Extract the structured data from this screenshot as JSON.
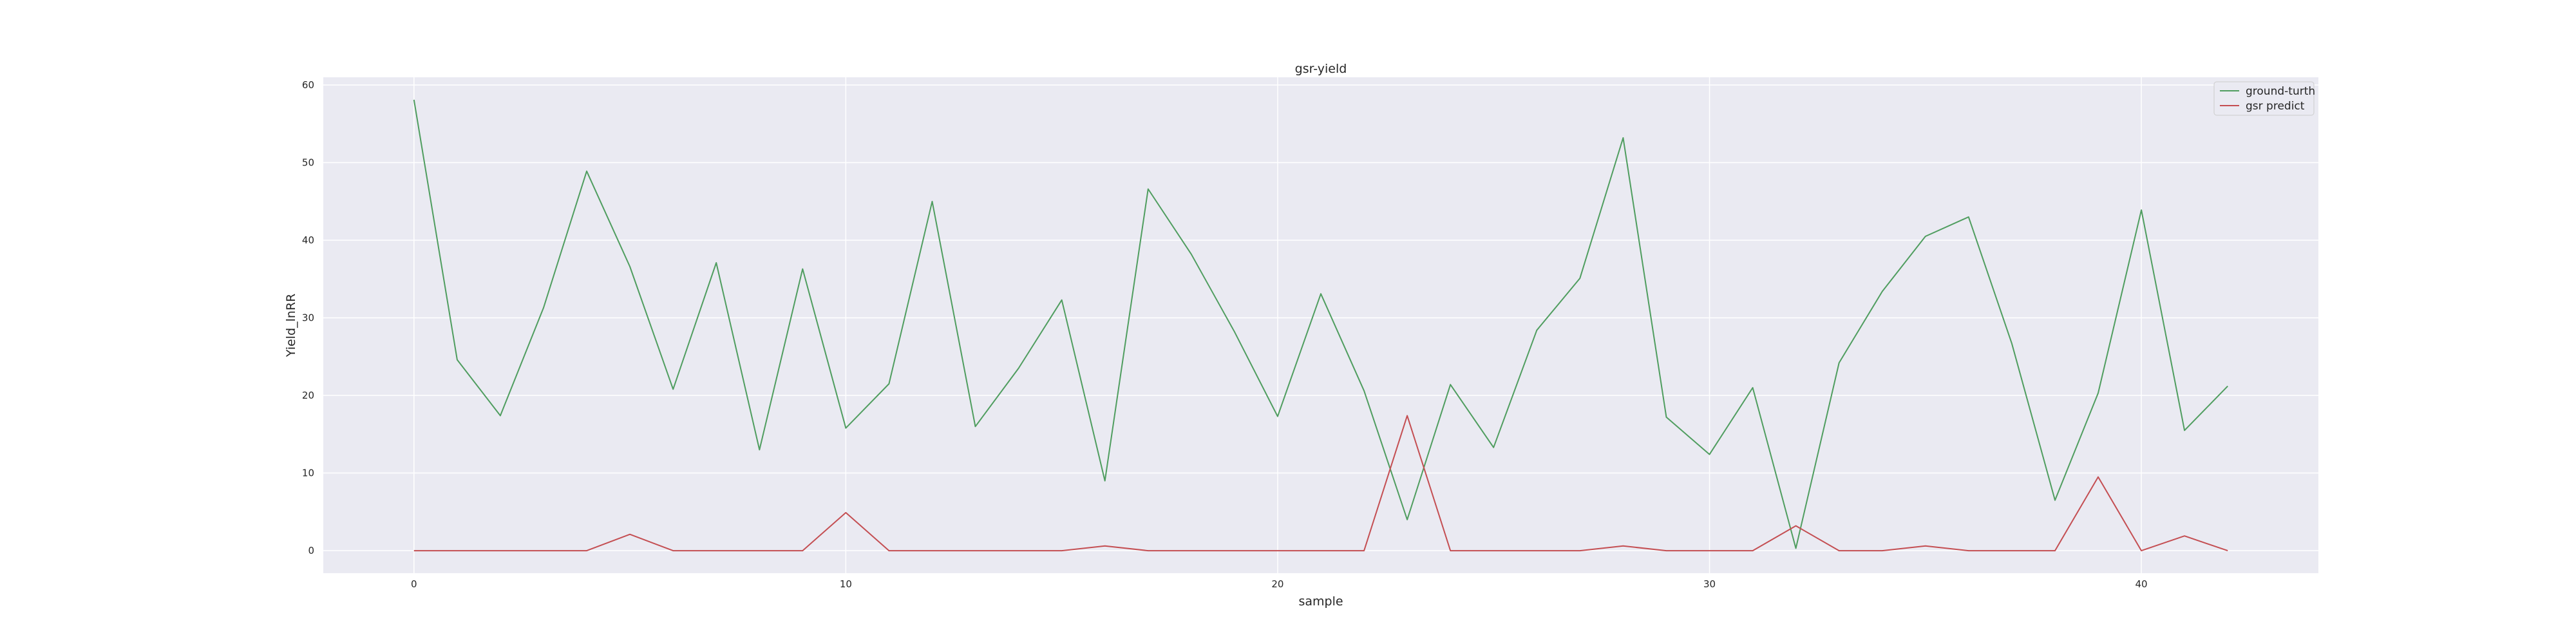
{
  "chart_data": {
    "type": "line",
    "title": "gsr-yield",
    "xlabel": "sample",
    "ylabel": "Yield_lnRR",
    "x": [
      0,
      1,
      2,
      3,
      4,
      5,
      6,
      7,
      8,
      9,
      10,
      11,
      12,
      13,
      14,
      15,
      16,
      17,
      18,
      19,
      20,
      21,
      22,
      23,
      24,
      25,
      26,
      27,
      28,
      29,
      30,
      31,
      32,
      33,
      34,
      35,
      36,
      37,
      38,
      39,
      40,
      41,
      42
    ],
    "xlim": [
      -2.1,
      44.1
    ],
    "ylim": [
      -2.9,
      61.0
    ],
    "xticks": [
      0,
      10,
      20,
      30,
      40
    ],
    "yticks": [
      0,
      10,
      20,
      30,
      40,
      50,
      60
    ],
    "grid": true,
    "legend_position": "top-right",
    "series": [
      {
        "name": "ground-turth",
        "color": "#4f9d5f",
        "values": [
          58.1,
          24.6,
          17.4,
          31.3,
          48.9,
          36.6,
          20.8,
          37.1,
          13.0,
          36.3,
          15.8,
          21.5,
          45.0,
          16.0,
          23.5,
          32.3,
          9.0,
          46.6,
          38.2,
          28.2,
          17.3,
          33.1,
          20.6,
          4.0,
          21.4,
          13.3,
          28.4,
          35.1,
          53.2,
          17.2,
          12.4,
          21.0,
          0.3,
          24.2,
          33.4,
          40.5,
          43.0,
          26.7,
          6.5,
          20.3,
          43.9,
          15.5,
          21.2
        ]
      },
      {
        "name": "gsr predict",
        "color": "#c44e52",
        "values": [
          0,
          0,
          0,
          0,
          0,
          2.1,
          0,
          0,
          0,
          0,
          4.9,
          0,
          0,
          0,
          0,
          0,
          0.6,
          0,
          0,
          0,
          0,
          0,
          0,
          17.4,
          0,
          0,
          0,
          0,
          0.6,
          0,
          0,
          0,
          3.2,
          0,
          0,
          0.6,
          0,
          0,
          0,
          9.5,
          0,
          1.9,
          0
        ]
      }
    ]
  }
}
